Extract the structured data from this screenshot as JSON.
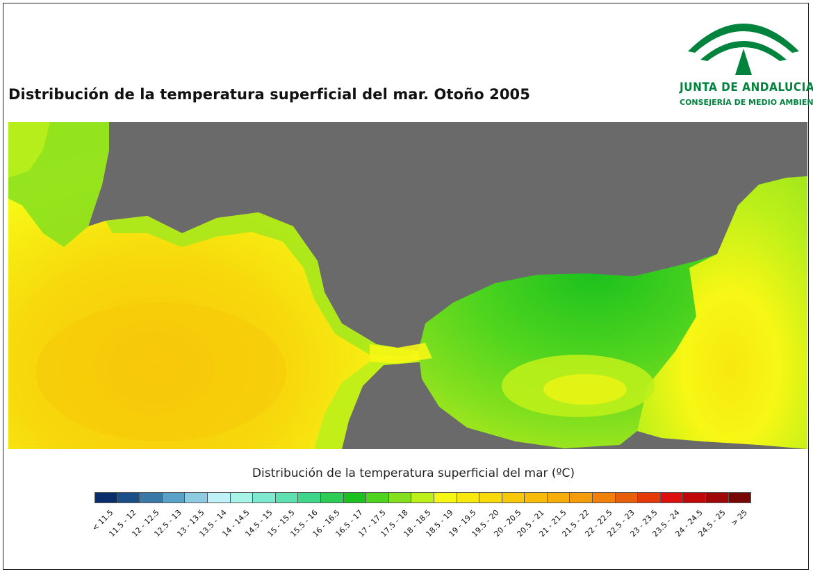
{
  "map": {
    "title": "Distribución de la temperatura superficial del mar. Otoño 2005",
    "land_color": "#6a6a6a"
  },
  "logo": {
    "name": "JUNTA DE ANDALUCIA",
    "subtitle": "CONSEJERÍA DE MEDIO AMBIENTE",
    "color": "#00833c"
  },
  "legend": {
    "title": "Distribución de la temperatura superficial del mar (ºC)",
    "classes": [
      {
        "label": "< 11.5",
        "color": "#0a2e6b"
      },
      {
        "label": "11.5 - 12",
        "color": "#1a4f8a"
      },
      {
        "label": "12 - 12.5",
        "color": "#3a78a8"
      },
      {
        "label": "12.5 - 13",
        "color": "#5aa1c8"
      },
      {
        "label": "13 - 13.5",
        "color": "#8ccbe0"
      },
      {
        "label": "13.5 - 14",
        "color": "#bff2f8"
      },
      {
        "label": "14 - 14.5",
        "color": "#a8f3e8"
      },
      {
        "label": "14.5 - 15",
        "color": "#7fe9cf"
      },
      {
        "label": "15 - 15.5",
        "color": "#5fe0b0"
      },
      {
        "label": "15.5 - 16",
        "color": "#3fd58a"
      },
      {
        "label": "16 - 16.5",
        "color": "#2ccc55"
      },
      {
        "label": "16.5 - 17",
        "color": "#1bc11e"
      },
      {
        "label": "17 - 17.5",
        "color": "#4ed41e"
      },
      {
        "label": "17.5 - 18",
        "color": "#84e01e"
      },
      {
        "label": "18 - 18.5",
        "color": "#bdf01a"
      },
      {
        "label": "18.5 - 19",
        "color": "#f7f714"
      },
      {
        "label": "19 - 19.5",
        "color": "#f7e80f"
      },
      {
        "label": "19.5 - 20",
        "color": "#f7d90c"
      },
      {
        "label": "20 - 20.5",
        "color": "#f7c80a"
      },
      {
        "label": "20.5 - 21",
        "color": "#f7bb0a"
      },
      {
        "label": "21 - 21.5",
        "color": "#f7ae0a"
      },
      {
        "label": "21.5 - 22",
        "color": "#f59c0a"
      },
      {
        "label": "22 - 22.5",
        "color": "#f0800a"
      },
      {
        "label": "22.5 - 23",
        "color": "#e85f0a"
      },
      {
        "label": "23 - 23.5",
        "color": "#e43a0a"
      },
      {
        "label": "23.5 - 24",
        "color": "#dd1010"
      },
      {
        "label": "24 - 24.5",
        "color": "#c00808"
      },
      {
        "label": "24.5 - 25",
        "color": "#a00808"
      },
      {
        "label": "> 25",
        "color": "#780808"
      }
    ]
  }
}
